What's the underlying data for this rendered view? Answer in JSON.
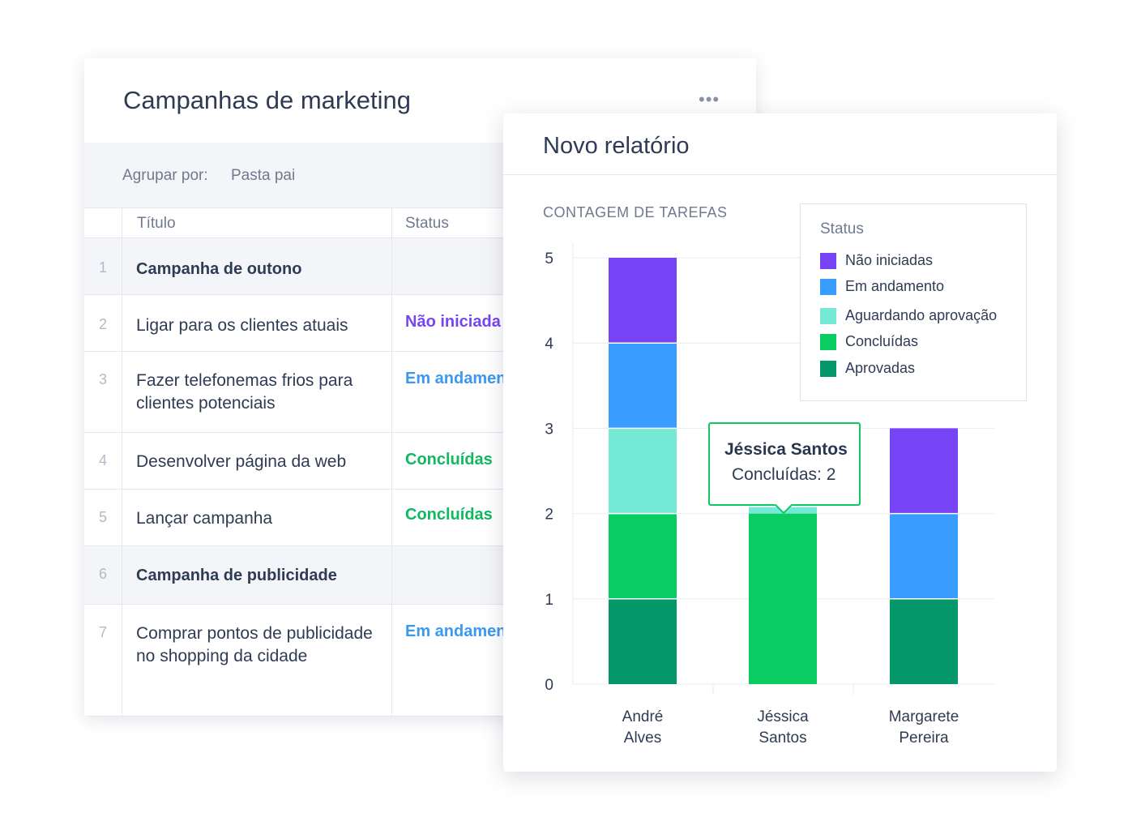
{
  "table_card": {
    "title": "Campanhas de marketing",
    "more_icon": "more-horizontal-icon",
    "group_by": {
      "label": "Agrupar por:",
      "value": "Pasta pai"
    },
    "columns": [
      "Título",
      "Status"
    ],
    "rows": [
      {
        "num": "1",
        "title": "Campanha de outono",
        "status": "",
        "group": true
      },
      {
        "num": "2",
        "title": "Ligar para os clientes atuais",
        "status": "Não iniciada",
        "status_color": "#7646f4"
      },
      {
        "num": "3",
        "title": "Fazer telefonemas frios para clientes potenciais",
        "status": "Em andamen",
        "status_color": "#3a99f2"
      },
      {
        "num": "4",
        "title": "Desenvolver página da web",
        "status": "Concluídas",
        "status_color": "#11b85f"
      },
      {
        "num": "5",
        "title": "Lançar campanha",
        "status": "Concluídas",
        "status_color": "#11b85f"
      },
      {
        "num": "6",
        "title": "Campanha de publicidade",
        "status": "",
        "group": true
      },
      {
        "num": "7",
        "title": "Comprar pontos de publicidade no shopping da cidade",
        "status": "Em andamen",
        "status_color": "#3a99f2"
      }
    ]
  },
  "report_card": {
    "title": "Novo relatório",
    "chart_title": "CONTAGEM DE TAREFAS",
    "legend_title": "Status",
    "tooltip": {
      "name": "Jéssica Santos",
      "value": "Concluídas: 2"
    }
  },
  "chart_data": {
    "type": "bar",
    "stacked": true,
    "title": "CONTAGEM DE TAREFAS",
    "categories": [
      "André Alves",
      "Jéssica Santos",
      "Margarete Pereira"
    ],
    "category_lines": [
      [
        "André",
        "Alves"
      ],
      [
        "Jéssica",
        "Santos"
      ],
      [
        "Margarete",
        "Pereira"
      ]
    ],
    "ylim": [
      0,
      5
    ],
    "yticks": [
      0,
      1,
      2,
      3,
      4,
      5
    ],
    "grid": true,
    "legend_title": "Status",
    "legend_position": "top-right",
    "series": [
      {
        "name": "Aprovadas",
        "color": "#039769",
        "values": [
          1,
          0,
          1
        ]
      },
      {
        "name": "Concluídas",
        "color": "#09cd63",
        "values": [
          1,
          2,
          0
        ]
      },
      {
        "name": "Aguardando aprovação",
        "color": "#74ead6",
        "values": [
          1,
          0,
          0
        ]
      },
      {
        "name": "Em andamento",
        "color": "#399cff",
        "values": [
          1,
          0,
          1
        ]
      },
      {
        "name": "Não iniciadas",
        "color": "#7644f5",
        "values": [
          1,
          0,
          1
        ]
      }
    ],
    "legend_order": [
      "Não iniciadas",
      "Em andamento",
      "Aguardando aprovação",
      "Concluídas",
      "Aprovadas"
    ]
  }
}
